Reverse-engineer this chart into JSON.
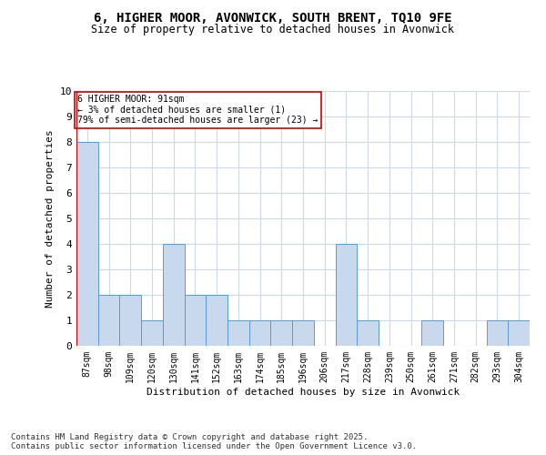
{
  "title_line1": "6, HIGHER MOOR, AVONWICK, SOUTH BRENT, TQ10 9FE",
  "title_line2": "Size of property relative to detached houses in Avonwick",
  "xlabel": "Distribution of detached houses by size in Avonwick",
  "ylabel": "Number of detached properties",
  "bin_labels": [
    "87sqm",
    "98sqm",
    "109sqm",
    "120sqm",
    "130sqm",
    "141sqm",
    "152sqm",
    "163sqm",
    "174sqm",
    "185sqm",
    "196sqm",
    "206sqm",
    "217sqm",
    "228sqm",
    "239sqm",
    "250sqm",
    "261sqm",
    "271sqm",
    "282sqm",
    "293sqm",
    "304sqm"
  ],
  "bar_values": [
    8,
    2,
    2,
    1,
    4,
    2,
    2,
    1,
    1,
    1,
    1,
    0,
    4,
    1,
    0,
    0,
    1,
    0,
    0,
    1,
    1
  ],
  "bar_color": "#c8d9ed",
  "bar_edge_color": "#5b9bd5",
  "vline_color": "#cc0000",
  "annotation_text": "6 HIGHER MOOR: 91sqm\n← 3% of detached houses are smaller (1)\n79% of semi-detached houses are larger (23) →",
  "annotation_box_color": "#ffffff",
  "annotation_box_edge": "#cc0000",
  "ylim": [
    0,
    10
  ],
  "yticks": [
    0,
    1,
    2,
    3,
    4,
    5,
    6,
    7,
    8,
    9,
    10
  ],
  "footer_text": "Contains HM Land Registry data © Crown copyright and database right 2025.\nContains public sector information licensed under the Open Government Licence v3.0.",
  "background_color": "#ffffff",
  "grid_color": "#d0d8e8"
}
